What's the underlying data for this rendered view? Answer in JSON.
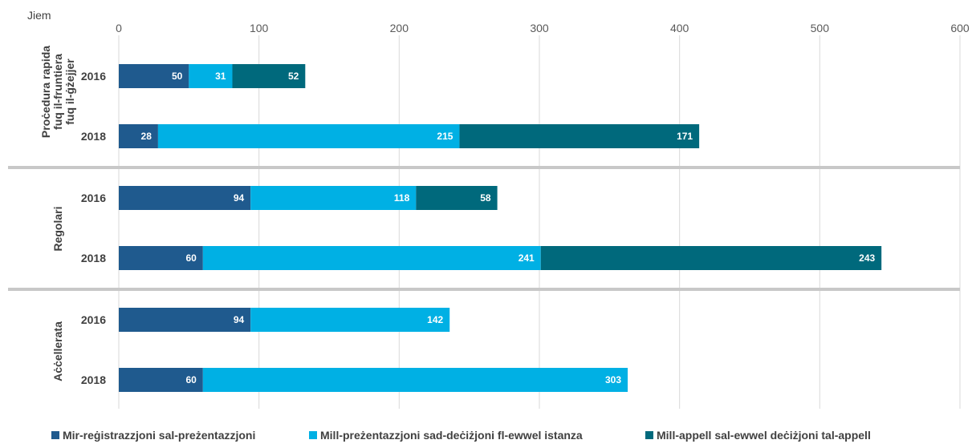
{
  "chart_data": {
    "type": "bar",
    "orientation": "horizontal",
    "stacked": true,
    "unit_label": "Jiem",
    "xlim": [
      0,
      600
    ],
    "x_ticks": [
      "0",
      "100",
      "200",
      "300",
      "400",
      "500",
      "600"
    ],
    "grid": true,
    "legend_position": "bottom",
    "groups": [
      {
        "label_lines": [
          "Proċedura rapida",
          "fuq il-fruntiera",
          "fuq il-ġżejjer"
        ],
        "rows": [
          {
            "year": "2016",
            "values": [
              50,
              31,
              52
            ]
          },
          {
            "year": "2018",
            "values": [
              28,
              215,
              171
            ]
          }
        ]
      },
      {
        "label_lines": [
          "Regolari"
        ],
        "rows": [
          {
            "year": "2016",
            "values": [
              94,
              118,
              58
            ]
          },
          {
            "year": "2018",
            "values": [
              60,
              241,
              243
            ]
          }
        ]
      },
      {
        "label_lines": [
          "Aċċellerata"
        ],
        "rows": [
          {
            "year": "2016",
            "values": [
              94,
              142,
              null
            ]
          },
          {
            "year": "2018",
            "values": [
              60,
              303,
              null
            ]
          }
        ]
      }
    ],
    "series": [
      {
        "name": "Mir-reġistrazzjoni sal-preżentazzjoni",
        "color": "#1F5A8E"
      },
      {
        "name": "Mill-preżentazzjoni sad-deċiżjoni fl-ewwel istanza",
        "color": "#00B0E4"
      },
      {
        "name": "Mill-appell sal-ewwel deċiżjoni tal-appell",
        "color": "#00697C"
      }
    ]
  }
}
